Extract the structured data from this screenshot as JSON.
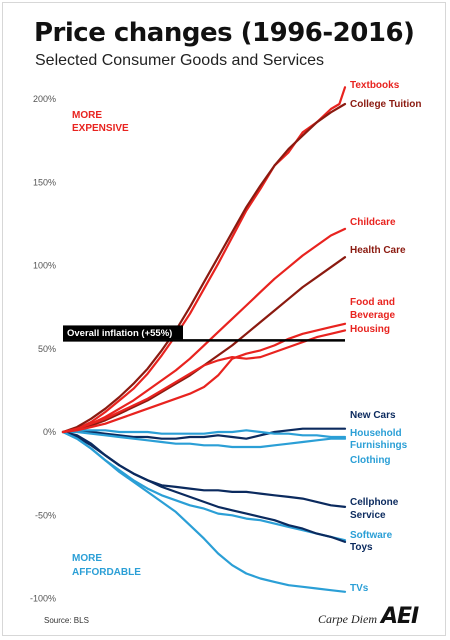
{
  "header": {
    "title": "Price changes (1996-2016)",
    "subtitle": "Selected Consumer Goods and Services"
  },
  "annotations": {
    "more_expensive_line1": "MORE",
    "more_expensive_line2": "EXPENSIVE",
    "more_affordable_line1": "MORE",
    "more_affordable_line2": "AFFORDABLE",
    "inflation_label": "Overall inflation (+55%)"
  },
  "footer": {
    "source": "Source: BLS",
    "blog": "Carpe Diem",
    "logo": "AEI"
  },
  "colors": {
    "red": "#e8231f",
    "dark_red": "#8b1a10",
    "navy": "#0b2a5e",
    "light_blue": "#2b9fd6",
    "inflation": "#000000"
  },
  "chart_data": {
    "type": "line",
    "x_start": "1996",
    "x_end": "2016",
    "ylim": [
      -100,
      210
    ],
    "yticks": [
      -100,
      -50,
      0,
      50,
      100,
      150,
      200
    ],
    "ytick_labels": [
      "-100%",
      "-50%",
      "0%",
      "50%",
      "100%",
      "150%",
      "200%"
    ],
    "grid": false,
    "inflation": {
      "label": "Overall inflation (+55%)",
      "value": 55
    },
    "series": [
      {
        "name": "Textbooks",
        "label_lines": [
          "Textbooks"
        ],
        "color": "red",
        "points": [
          [
            0,
            0
          ],
          [
            0.05,
            2
          ],
          [
            0.1,
            6
          ],
          [
            0.15,
            12
          ],
          [
            0.2,
            19
          ],
          [
            0.25,
            26
          ],
          [
            0.3,
            35
          ],
          [
            0.35,
            46
          ],
          [
            0.4,
            58
          ],
          [
            0.45,
            71
          ],
          [
            0.5,
            86
          ],
          [
            0.55,
            101
          ],
          [
            0.6,
            117
          ],
          [
            0.65,
            133
          ],
          [
            0.7,
            146
          ],
          [
            0.75,
            160
          ],
          [
            0.8,
            168
          ],
          [
            0.85,
            180
          ],
          [
            0.9,
            186
          ],
          [
            0.95,
            194
          ],
          [
            0.98,
            197
          ],
          [
            1.0,
            207
          ]
        ]
      },
      {
        "name": "College Tuition",
        "label_lines": [
          "College Tuition"
        ],
        "color": "dark_red",
        "points": [
          [
            0,
            0
          ],
          [
            0.05,
            3
          ],
          [
            0.1,
            8
          ],
          [
            0.15,
            14
          ],
          [
            0.2,
            21
          ],
          [
            0.25,
            29
          ],
          [
            0.3,
            38
          ],
          [
            0.35,
            49
          ],
          [
            0.4,
            61
          ],
          [
            0.45,
            75
          ],
          [
            0.5,
            90
          ],
          [
            0.55,
            105
          ],
          [
            0.6,
            120
          ],
          [
            0.65,
            135
          ],
          [
            0.7,
            148
          ],
          [
            0.75,
            160
          ],
          [
            0.8,
            170
          ],
          [
            0.85,
            178
          ],
          [
            0.9,
            186
          ],
          [
            0.95,
            192
          ],
          [
            1.0,
            197
          ]
        ]
      },
      {
        "name": "Childcare",
        "label_lines": [
          "Childcare"
        ],
        "color": "red",
        "points": [
          [
            0,
            0
          ],
          [
            0.05,
            2
          ],
          [
            0.1,
            5
          ],
          [
            0.15,
            9
          ],
          [
            0.2,
            14
          ],
          [
            0.25,
            19
          ],
          [
            0.3,
            25
          ],
          [
            0.35,
            31
          ],
          [
            0.4,
            37
          ],
          [
            0.45,
            44
          ],
          [
            0.5,
            52
          ],
          [
            0.55,
            60
          ],
          [
            0.6,
            68
          ],
          [
            0.65,
            76
          ],
          [
            0.7,
            84
          ],
          [
            0.75,
            92
          ],
          [
            0.8,
            99
          ],
          [
            0.85,
            106
          ],
          [
            0.9,
            112
          ],
          [
            0.95,
            118
          ],
          [
            1.0,
            122
          ]
        ]
      },
      {
        "name": "Health Care",
        "label_lines": [
          "Health Care"
        ],
        "color": "dark_red",
        "points": [
          [
            0,
            0
          ],
          [
            0.05,
            2
          ],
          [
            0.1,
            4
          ],
          [
            0.15,
            7
          ],
          [
            0.2,
            11
          ],
          [
            0.25,
            15
          ],
          [
            0.3,
            19
          ],
          [
            0.35,
            24
          ],
          [
            0.4,
            29
          ],
          [
            0.45,
            34
          ],
          [
            0.5,
            40
          ],
          [
            0.55,
            46
          ],
          [
            0.6,
            52
          ],
          [
            0.65,
            59
          ],
          [
            0.7,
            66
          ],
          [
            0.75,
            73
          ],
          [
            0.8,
            80
          ],
          [
            0.85,
            87
          ],
          [
            0.9,
            93
          ],
          [
            0.95,
            99
          ],
          [
            1.0,
            105
          ]
        ]
      },
      {
        "name": "Food and Beverage",
        "label_lines": [
          "Food and",
          "Beverage"
        ],
        "color": "red",
        "points": [
          [
            0,
            0
          ],
          [
            0.05,
            1
          ],
          [
            0.1,
            3
          ],
          [
            0.15,
            5
          ],
          [
            0.2,
            8
          ],
          [
            0.25,
            11
          ],
          [
            0.3,
            14
          ],
          [
            0.35,
            17
          ],
          [
            0.4,
            20
          ],
          [
            0.45,
            23
          ],
          [
            0.5,
            27
          ],
          [
            0.55,
            34
          ],
          [
            0.6,
            44
          ],
          [
            0.65,
            47
          ],
          [
            0.7,
            49
          ],
          [
            0.75,
            52
          ],
          [
            0.8,
            56
          ],
          [
            0.85,
            59
          ],
          [
            0.9,
            61
          ],
          [
            0.95,
            63
          ],
          [
            1.0,
            65
          ]
        ]
      },
      {
        "name": "Housing",
        "label_lines": [
          "Housing"
        ],
        "color": "red",
        "points": [
          [
            0,
            0
          ],
          [
            0.05,
            2
          ],
          [
            0.1,
            5
          ],
          [
            0.15,
            8
          ],
          [
            0.2,
            12
          ],
          [
            0.25,
            16
          ],
          [
            0.3,
            20
          ],
          [
            0.35,
            25
          ],
          [
            0.4,
            30
          ],
          [
            0.45,
            35
          ],
          [
            0.5,
            40
          ],
          [
            0.55,
            43
          ],
          [
            0.6,
            45
          ],
          [
            0.65,
            44
          ],
          [
            0.7,
            45
          ],
          [
            0.75,
            48
          ],
          [
            0.8,
            51
          ],
          [
            0.85,
            54
          ],
          [
            0.9,
            57
          ],
          [
            0.95,
            59
          ],
          [
            1.0,
            61
          ]
        ]
      },
      {
        "name": "New Cars",
        "label_lines": [
          "New Cars"
        ],
        "color": "navy",
        "points": [
          [
            0,
            0
          ],
          [
            0.05,
            1
          ],
          [
            0.1,
            0
          ],
          [
            0.15,
            -1
          ],
          [
            0.2,
            -2
          ],
          [
            0.25,
            -3
          ],
          [
            0.3,
            -3
          ],
          [
            0.35,
            -4
          ],
          [
            0.4,
            -4
          ],
          [
            0.45,
            -3
          ],
          [
            0.5,
            -3
          ],
          [
            0.55,
            -2
          ],
          [
            0.6,
            -3
          ],
          [
            0.65,
            -4
          ],
          [
            0.7,
            -2
          ],
          [
            0.75,
            0
          ],
          [
            0.8,
            1
          ],
          [
            0.85,
            2
          ],
          [
            0.9,
            2
          ],
          [
            0.95,
            2
          ],
          [
            1.0,
            2
          ]
        ]
      },
      {
        "name": "Household Furnishings",
        "label_lines": [
          "Household",
          "Furnishings"
        ],
        "color": "light_blue",
        "points": [
          [
            0,
            0
          ],
          [
            0.05,
            1
          ],
          [
            0.1,
            1
          ],
          [
            0.15,
            1
          ],
          [
            0.2,
            0
          ],
          [
            0.25,
            0
          ],
          [
            0.3,
            0
          ],
          [
            0.35,
            -1
          ],
          [
            0.4,
            -1
          ],
          [
            0.45,
            -1
          ],
          [
            0.5,
            -1
          ],
          [
            0.55,
            0
          ],
          [
            0.6,
            0
          ],
          [
            0.65,
            1
          ],
          [
            0.7,
            0
          ],
          [
            0.75,
            -1
          ],
          [
            0.8,
            -1
          ],
          [
            0.85,
            -2
          ],
          [
            0.9,
            -2
          ],
          [
            0.95,
            -3
          ],
          [
            1.0,
            -3
          ]
        ]
      },
      {
        "name": "Clothing",
        "label_lines": [
          "Clothing"
        ],
        "color": "light_blue",
        "points": [
          [
            0,
            0
          ],
          [
            0.05,
            0
          ],
          [
            0.1,
            -1
          ],
          [
            0.15,
            -2
          ],
          [
            0.2,
            -3
          ],
          [
            0.25,
            -4
          ],
          [
            0.3,
            -5
          ],
          [
            0.35,
            -6
          ],
          [
            0.4,
            -7
          ],
          [
            0.45,
            -7
          ],
          [
            0.5,
            -8
          ],
          [
            0.55,
            -8
          ],
          [
            0.6,
            -9
          ],
          [
            0.65,
            -9
          ],
          [
            0.7,
            -9
          ],
          [
            0.75,
            -8
          ],
          [
            0.8,
            -7
          ],
          [
            0.85,
            -6
          ],
          [
            0.9,
            -5
          ],
          [
            0.95,
            -4
          ],
          [
            1.0,
            -4
          ]
        ]
      },
      {
        "name": "Cellphone Service",
        "label_lines": [
          "Cellphone",
          "Service"
        ],
        "color": "navy",
        "points": [
          [
            0,
            0
          ],
          [
            0.05,
            -3
          ],
          [
            0.1,
            -8
          ],
          [
            0.15,
            -14
          ],
          [
            0.2,
            -20
          ],
          [
            0.25,
            -25
          ],
          [
            0.3,
            -29
          ],
          [
            0.35,
            -32
          ],
          [
            0.4,
            -33
          ],
          [
            0.45,
            -34
          ],
          [
            0.5,
            -35
          ],
          [
            0.55,
            -35
          ],
          [
            0.6,
            -36
          ],
          [
            0.65,
            -36
          ],
          [
            0.7,
            -37
          ],
          [
            0.75,
            -38
          ],
          [
            0.8,
            -39
          ],
          [
            0.85,
            -40
          ],
          [
            0.9,
            -42
          ],
          [
            0.95,
            -44
          ],
          [
            1.0,
            -45
          ]
        ]
      },
      {
        "name": "Software",
        "label_lines": [
          "Software"
        ],
        "color": "light_blue",
        "points": [
          [
            0,
            0
          ],
          [
            0.05,
            -4
          ],
          [
            0.1,
            -10
          ],
          [
            0.15,
            -17
          ],
          [
            0.2,
            -23
          ],
          [
            0.25,
            -29
          ],
          [
            0.3,
            -34
          ],
          [
            0.35,
            -38
          ],
          [
            0.4,
            -41
          ],
          [
            0.45,
            -44
          ],
          [
            0.5,
            -46
          ],
          [
            0.55,
            -49
          ],
          [
            0.6,
            -50
          ],
          [
            0.65,
            -52
          ],
          [
            0.7,
            -53
          ],
          [
            0.75,
            -55
          ],
          [
            0.8,
            -57
          ],
          [
            0.85,
            -59
          ],
          [
            0.9,
            -61
          ],
          [
            0.95,
            -63
          ],
          [
            1.0,
            -65
          ]
        ]
      },
      {
        "name": "Toys",
        "label_lines": [
          "Toys"
        ],
        "color": "navy",
        "points": [
          [
            0,
            0
          ],
          [
            0.05,
            -2
          ],
          [
            0.1,
            -7
          ],
          [
            0.15,
            -14
          ],
          [
            0.2,
            -20
          ],
          [
            0.25,
            -25
          ],
          [
            0.3,
            -29
          ],
          [
            0.35,
            -33
          ],
          [
            0.4,
            -36
          ],
          [
            0.45,
            -39
          ],
          [
            0.5,
            -42
          ],
          [
            0.55,
            -45
          ],
          [
            0.6,
            -47
          ],
          [
            0.65,
            -49
          ],
          [
            0.7,
            -51
          ],
          [
            0.75,
            -53
          ],
          [
            0.8,
            -56
          ],
          [
            0.85,
            -58
          ],
          [
            0.9,
            -61
          ],
          [
            0.95,
            -63
          ],
          [
            1.0,
            -66
          ]
        ]
      },
      {
        "name": "TVs",
        "label_lines": [
          "TVs"
        ],
        "color": "light_blue",
        "points": [
          [
            0,
            0
          ],
          [
            0.05,
            -4
          ],
          [
            0.1,
            -10
          ],
          [
            0.15,
            -17
          ],
          [
            0.2,
            -24
          ],
          [
            0.25,
            -30
          ],
          [
            0.3,
            -36
          ],
          [
            0.35,
            -42
          ],
          [
            0.4,
            -48
          ],
          [
            0.45,
            -56
          ],
          [
            0.5,
            -64
          ],
          [
            0.55,
            -73
          ],
          [
            0.6,
            -80
          ],
          [
            0.65,
            -85
          ],
          [
            0.7,
            -88
          ],
          [
            0.75,
            -90
          ],
          [
            0.8,
            -92
          ],
          [
            0.85,
            -93
          ],
          [
            0.9,
            -94
          ],
          [
            0.95,
            -95
          ],
          [
            1.0,
            -96
          ]
        ]
      }
    ]
  }
}
